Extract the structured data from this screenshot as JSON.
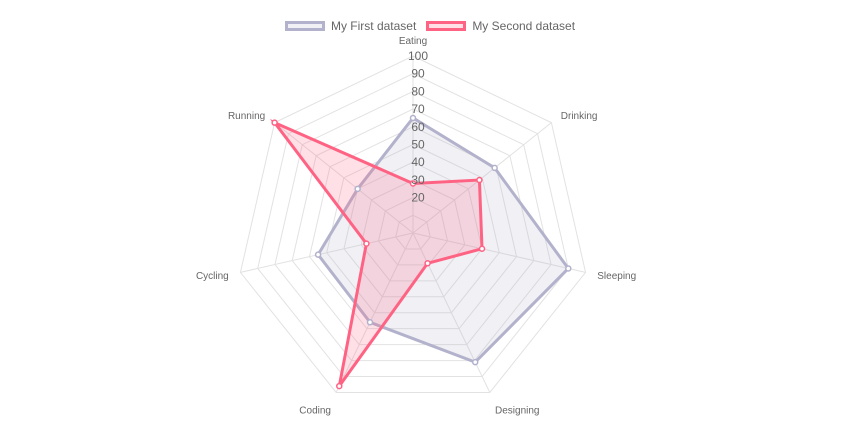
{
  "chart_data": {
    "type": "radar",
    "labels": [
      "Eating",
      "Drinking",
      "Sleeping",
      "Designing",
      "Coding",
      "Cycling",
      "Running"
    ],
    "scale": {
      "min": 0,
      "max": 100,
      "step": 10,
      "tick_labels": [
        "20",
        "30",
        "40",
        "50",
        "60",
        "70",
        "80",
        "90",
        "100"
      ]
    },
    "legend_position": "top",
    "series": [
      {
        "name": "My First dataset",
        "values": [
          65,
          59,
          90,
          81,
          56,
          55,
          40
        ],
        "border_color": "#b3b2cc",
        "fill_color": "rgba(179,178,204,0.2)",
        "point_color": "#b3b2cc"
      },
      {
        "name": "My Second dataset",
        "values": [
          28,
          48,
          40,
          19,
          96,
          27,
          100
        ],
        "border_color": "#ff6384",
        "fill_color": "rgba(255,99,132,0.2)",
        "point_color": "#ff6384"
      }
    ]
  }
}
